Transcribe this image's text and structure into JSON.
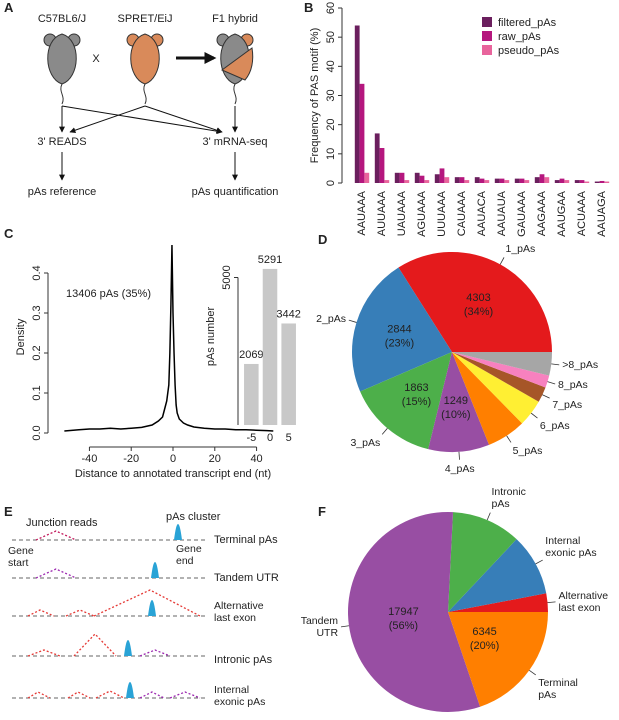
{
  "panel_labels": [
    "A",
    "B",
    "C",
    "D",
    "E",
    "F"
  ],
  "diagram_a": {
    "strains": [
      "C57BL6/J",
      "SPRET/EiJ",
      "F1 hybrid"
    ],
    "cross": "X",
    "methods": [
      "3' READS",
      "3' mRNA-seq"
    ],
    "outputs": [
      "pAs reference",
      "pAs quantification"
    ]
  },
  "chart_data": [
    {
      "type": "bar",
      "ylabel": "Frequency of PAS motif (%)",
      "categories": [
        "AAUAAA",
        "AUUAAA",
        "UAUAAA",
        "AGUAAA",
        "UUUAAA",
        "CAUAAA",
        "AAUACA",
        "AAUAUA",
        "GAUAAA",
        "AAGAAA",
        "AAUGAA",
        "ACUAAA",
        "AAUAGA"
      ],
      "series": [
        {
          "name": "filtered_pAs",
          "color": "#6b1f5e",
          "values": [
            54,
            17,
            3.5,
            3.5,
            3,
            2,
            2,
            1.5,
            1.5,
            2,
            1,
            1,
            0.5
          ]
        },
        {
          "name": "raw_pAs",
          "color": "#b5177e",
          "values": [
            34,
            12,
            3.5,
            2.5,
            5,
            2,
            1.5,
            1.5,
            1.5,
            3,
            1.5,
            1,
            0.7
          ]
        },
        {
          "name": "pseudo_pAs",
          "color": "#e8649c",
          "values": [
            3.5,
            1,
            1,
            1,
            2,
            1,
            1,
            1,
            1,
            2,
            1,
            0.5,
            0.5
          ]
        }
      ],
      "ylim": [
        0,
        60
      ],
      "yticks": [
        0,
        10,
        20,
        30,
        40,
        50,
        60
      ],
      "legend": "top-right"
    },
    {
      "type": "line",
      "xlabel": "Distance to annotated transcript end (nt)",
      "ylabel": "Density",
      "annotation": "13406 pAs (35%)",
      "x": [
        -52,
        -45,
        -40,
        -35,
        -30,
        -25,
        -20,
        -15,
        -10,
        -7,
        -5,
        -4,
        -3,
        -2,
        -1.5,
        -1,
        -0.5,
        0,
        0.5,
        1,
        1.5,
        2,
        3,
        4,
        5,
        7,
        10,
        15,
        20,
        25,
        30,
        35,
        40,
        45,
        48
      ],
      "values": [
        0.005,
        0.008,
        0.01,
        0.01,
        0.012,
        0.01,
        0.012,
        0.014,
        0.02,
        0.03,
        0.04,
        0.06,
        0.08,
        0.12,
        0.2,
        0.32,
        0.47,
        0.3,
        0.2,
        0.12,
        0.07,
        0.05,
        0.035,
        0.03,
        0.025,
        0.02,
        0.015,
        0.012,
        0.01,
        0.01,
        0.008,
        0.008,
        0.007,
        0.006,
        0.005
      ],
      "color": "#000000",
      "xlim": [
        -56,
        56
      ],
      "xticks": [
        -40,
        -20,
        0,
        20,
        40
      ],
      "ylim": [
        0,
        0.48
      ],
      "yticks": [
        {
          "value": 0,
          "label": "0.0"
        },
        0.1,
        0.2,
        0.3,
        0.4
      ]
    },
    {
      "type": "bar",
      "ylabel": "pAs number",
      "categories": [
        "-5",
        "0",
        "5"
      ],
      "values": [
        2069,
        5291,
        3442
      ],
      "color": "#c8c8c8",
      "ylim": [
        0,
        6000
      ],
      "yticks": [
        5000
      ],
      "data_labels": true
    },
    {
      "type": "pie",
      "categories": [
        "1_pAs",
        "2_pAs",
        "3_pAs",
        "4_pAs",
        "5_pAs",
        "6_pAs",
        "7_pAs",
        "8_pAs",
        ">8_pAs"
      ],
      "values": [
        4303,
        2844,
        1863,
        1249,
        800,
        550,
        320,
        250,
        480
      ],
      "percent_labels": [
        "(34%)",
        "(23%)",
        "(15%)",
        "(10%)",
        null,
        null,
        null,
        null,
        null
      ],
      "colors": [
        "#e41a1c",
        "#377eb8",
        "#4daf4a",
        "#984ea3",
        "#ff7f00",
        "#ffef33",
        "#a65628",
        "#f781bf",
        "#a6a6a6"
      ]
    },
    {
      "type": "pie",
      "categories": [
        "Alternative\nlast  exon",
        "Internal\nexonic pAs",
        "Intronic\npAs",
        "Tandem\nUTR",
        "Terminal\npAs"
      ],
      "values": [
        960,
        3200,
        3596,
        17947,
        6345
      ],
      "percent_labels": [
        null,
        null,
        null,
        "(56%)",
        "(20%)"
      ],
      "colors": [
        "#e41a1c",
        "#377eb8",
        "#4daf4a",
        "#984ea3",
        "#ff7f00"
      ]
    }
  ],
  "diagram_e": {
    "junction_reads": "Junction reads",
    "pas_cluster": "pAs cluster",
    "gene_start": "Gene\nstart",
    "gene_end": "Gene\nend",
    "events": [
      "Terminal pAs",
      "Tandem UTR",
      "Alternative\nlast exon",
      "Intronic pAs",
      "Internal\nexonic pAs"
    ]
  }
}
